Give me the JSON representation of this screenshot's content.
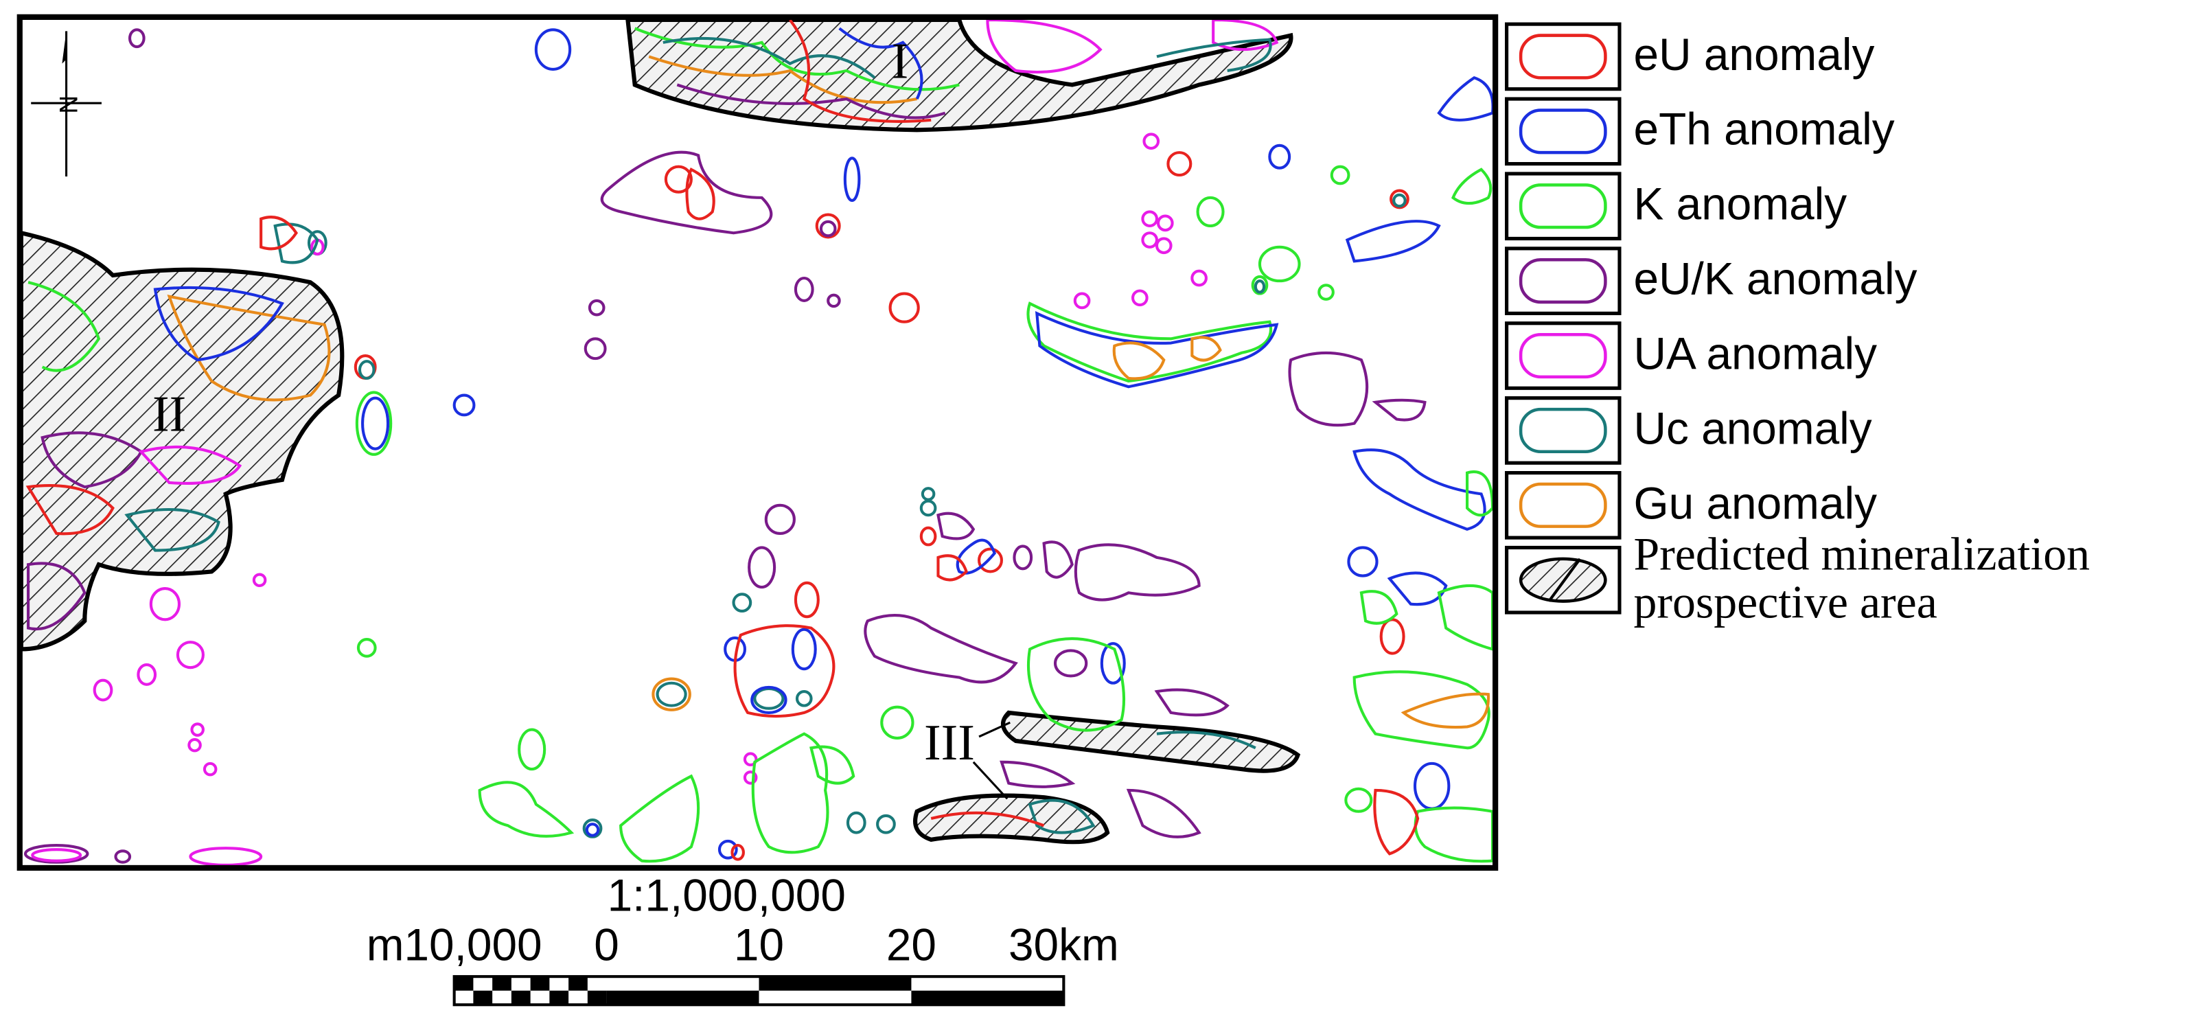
{
  "north": "N",
  "legend": {
    "items": [
      {
        "label": "eU anomaly",
        "color": "#e8231f"
      },
      {
        "label": "eTh anomaly",
        "color": "#1a2fe0"
      },
      {
        "label": "K anomaly",
        "color": "#2ee62e"
      },
      {
        "label": "eU/K anomaly",
        "color": "#7a1a8a"
      },
      {
        "label": "UA anomaly",
        "color": "#e81ce8"
      },
      {
        "label": "Uc anomaly",
        "color": "#1a7a7a"
      },
      {
        "label": "Gu anomaly",
        "color": "#e88a1a"
      }
    ],
    "predicted": {
      "lines": [
        "Predicted mineralization",
        "prospective area"
      ]
    }
  },
  "areas": [
    "I",
    "II",
    "III"
  ],
  "scale": {
    "ratio": "1:1,000,000",
    "labels": [
      "m10,000",
      "0",
      "10",
      "20",
      "30km"
    ]
  }
}
